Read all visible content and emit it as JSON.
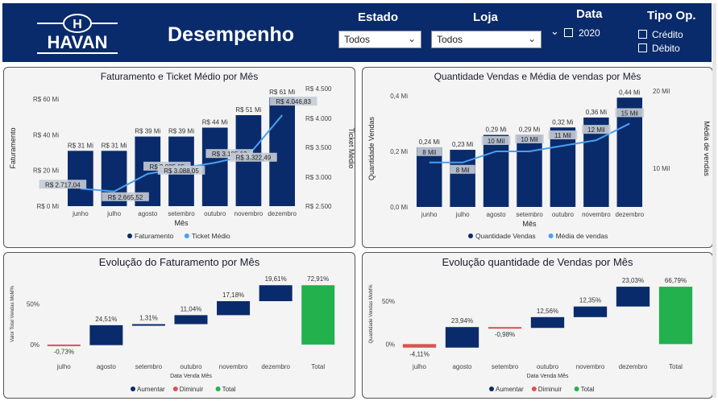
{
  "header": {
    "title": "Desempenho",
    "filters": {
      "estado": {
        "label": "Estado",
        "value": "Todos"
      },
      "loja": {
        "label": "Loja",
        "value": "Todos"
      },
      "data": {
        "label": "Data",
        "year": "2020"
      },
      "tipo": {
        "label": "Tipo Op.",
        "options": [
          "Crédito",
          "Débito"
        ]
      }
    }
  },
  "logo": {
    "letter": "H",
    "text": "HAVAN"
  },
  "colors": {
    "header": "#0a2b6b",
    "bar": "#0a2b6b",
    "line": "#4a9ff0",
    "decrease": "#d9534f",
    "total": "#22b14c"
  },
  "panels": {
    "fat_ticket": {
      "title": "Faturamento e Ticket Médio por Mês"
    },
    "qtd_media": {
      "title": "Quantidade Vendas e Média de vendas por Mês"
    },
    "evol_fat": {
      "title": "Evolução do Faturamento por Mês"
    },
    "evol_qtd": {
      "title": "Evolução quantidade de Vendas por Mês"
    }
  },
  "chart_data": [
    {
      "type": "bar",
      "title": "Faturamento e Ticket Médio por Mês",
      "categories": [
        "junho",
        "julho",
        "agosto",
        "setembro",
        "outubro",
        "novembro",
        "dezembro"
      ],
      "xlabel": "Mês",
      "ylabel": "Faturamento",
      "y2label": "Ticket Médio",
      "ylim": [
        0,
        65
      ],
      "y2lim": [
        2400,
        4500
      ],
      "yticks": [
        "R$ 0 Mi",
        "R$ 20 Mi",
        "R$ 40 Mi",
        "R$ 60 Mi"
      ],
      "y2ticks": [
        "R$ 2.500",
        "R$ 3.000",
        "R$ 3.500",
        "R$ 4.000",
        "R$ 4.500"
      ],
      "series": [
        {
          "name": "Faturamento",
          "kind": "bar",
          "values": [
            31,
            31,
            39,
            39,
            44,
            51,
            61
          ],
          "labels": [
            "R$ 31 Mi",
            "R$ 31 Mi",
            "R$ 39 Mi",
            "R$ 39 Mi",
            "R$ 44 Mi",
            "R$ 51 Mi",
            "R$ 61 Mi"
          ]
        },
        {
          "name": "Ticket Médio",
          "kind": "line",
          "values": [
            2717.04,
            2665.52,
            2985.65,
            3088.05,
            3185.13,
            3322.49,
            4046.83
          ],
          "labels": [
            "R$ 2.717,04",
            "R$ 2.665,52",
            "R$ 2.985,65",
            "R$ 3.088,05",
            "R$ 3.185,13",
            "R$ 3.322,49",
            "R$ 4.046,83"
          ]
        }
      ],
      "legend": [
        "Faturamento",
        "Ticket Médio"
      ]
    },
    {
      "type": "bar",
      "title": "Quantidade Vendas e Média de vendas por Mês",
      "categories": [
        "junho",
        "julho",
        "agosto",
        "setembro",
        "outubro",
        "novembro",
        "dezembro"
      ],
      "xlabel": "Mês",
      "ylabel": "Quantidade Vendas",
      "y2label": "Média de vendas",
      "ylim": [
        0,
        0.47
      ],
      "y2lim": [
        0,
        21
      ],
      "yticks": [
        "0,0 Mi",
        "0,2 Mi",
        "0,4 Mi"
      ],
      "y2ticks": [
        "10 Mil",
        "20 Mil"
      ],
      "series": [
        {
          "name": "Quantidade Vendas",
          "kind": "bar",
          "values": [
            0.24,
            0.23,
            0.29,
            0.29,
            0.32,
            0.36,
            0.44
          ],
          "labels": [
            "0,24 Mi",
            "0,23 Mi",
            "0,29 Mi",
            "0,29 Mi",
            "0,32 Mi",
            "0,36 Mi",
            "0,44 Mi"
          ]
        },
        {
          "name": "Média de vendas",
          "kind": "line",
          "values": [
            8,
            8,
            10,
            10,
            11,
            12,
            15
          ],
          "labels": [
            "8 Mil",
            "8 Mil",
            "10 Mil",
            "10 Mil",
            "11 Mil",
            "12 Mil",
            "15 Mil"
          ]
        }
      ],
      "legend": [
        "Quantidade Vendas",
        "Média de vendas"
      ]
    },
    {
      "type": "waterfall",
      "title": "Evolução do Faturamento por Mês",
      "categories": [
        "julho",
        "agosto",
        "setembro",
        "outubro",
        "novembro",
        "dezembro",
        "Total"
      ],
      "xlabel": "Data Venda Mês",
      "ylabel": "Valor Total Vendas MoM%",
      "ylim": [
        -10,
        85
      ],
      "yticks": [
        "0%",
        "50%"
      ],
      "values": [
        -0.73,
        24.51,
        1.31,
        11.04,
        17.18,
        19.61,
        72.91
      ],
      "labels": [
        "-0,73%",
        "24,51%",
        "1,31%",
        "11,04%",
        "17,18%",
        "19,61%",
        "72,91%"
      ],
      "legend": [
        "Aumentar",
        "Diminuir",
        "Total"
      ]
    },
    {
      "type": "waterfall",
      "title": "Evolução quantidade de Vendas por Mês",
      "categories": [
        "julho",
        "agosto",
        "setembro",
        "outubro",
        "novembro",
        "dezembro",
        "Total"
      ],
      "xlabel": "Data Venda Mês",
      "ylabel": "Quantidade Vendas MoM%",
      "ylim": [
        -10,
        80
      ],
      "yticks": [
        "0%",
        "50%"
      ],
      "values": [
        -4.11,
        23.94,
        -0.98,
        12.56,
        12.35,
        23.03,
        66.79
      ],
      "labels": [
        "-4,11%",
        "23,94%",
        "-0,98%",
        "12,56%",
        "12,35%",
        "23,03%",
        "66,79%"
      ],
      "legend": [
        "Aumentar",
        "Diminuir",
        "Total"
      ]
    }
  ]
}
